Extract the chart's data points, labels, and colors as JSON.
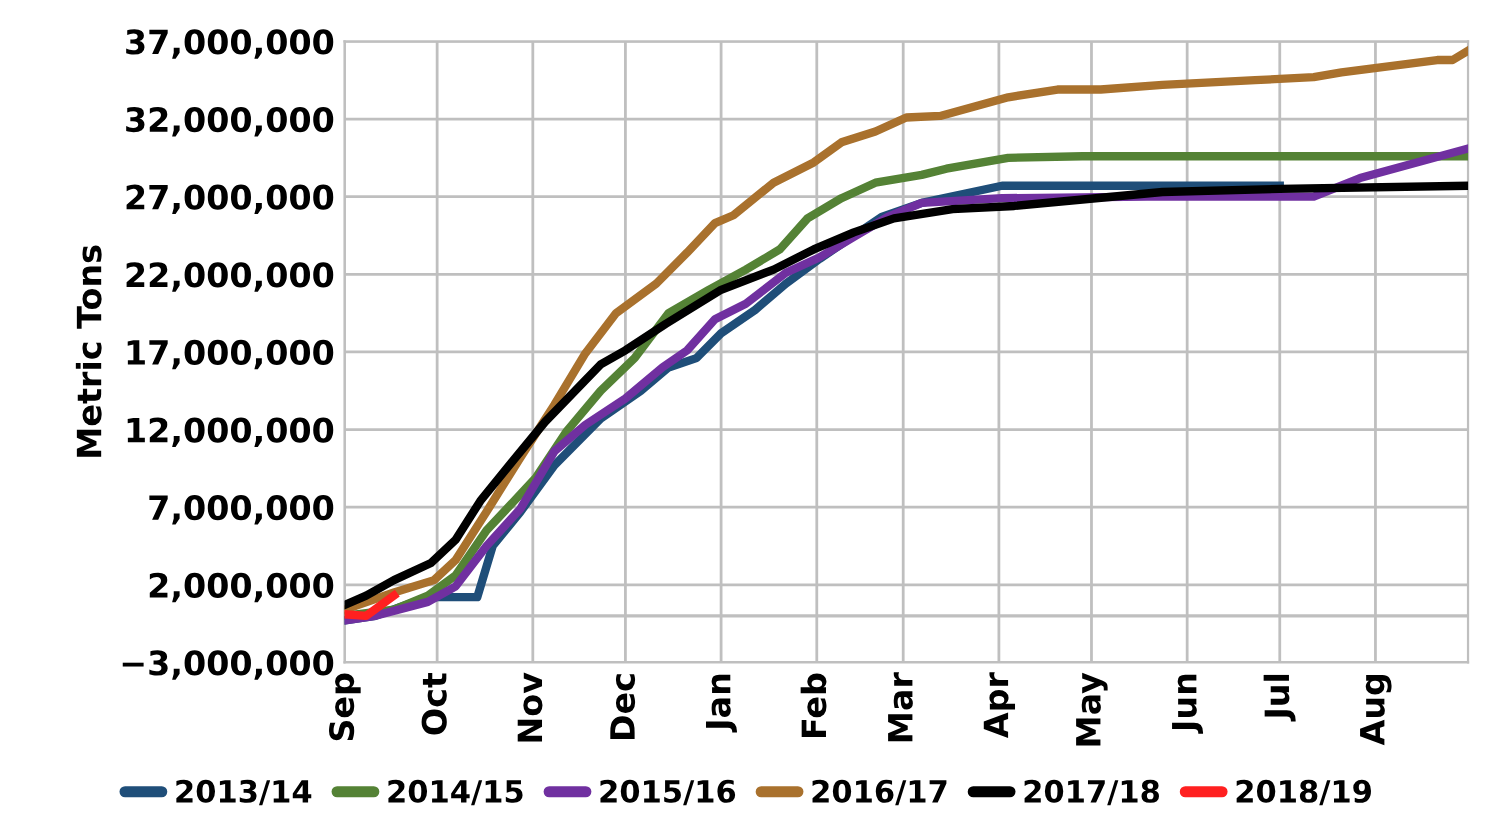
{
  "chart_data": {
    "type": "line",
    "ylabel": "Metric Tons",
    "xlim": [
      "2017-09-01",
      "2018-08-31"
    ],
    "xticks": [
      {
        "value": "2017-09-01",
        "label": "Sep"
      },
      {
        "value": "2017-10-01",
        "label": "Oct"
      },
      {
        "value": "2017-11-01",
        "label": "Nov"
      },
      {
        "value": "2017-12-01",
        "label": "Dec"
      },
      {
        "value": "2018-01-01",
        "label": "Jan"
      },
      {
        "value": "2018-02-01",
        "label": "Feb"
      },
      {
        "value": "2018-03-01",
        "label": "Mar"
      },
      {
        "value": "2018-04-01",
        "label": "Apr"
      },
      {
        "value": "2018-05-01",
        "label": "May"
      },
      {
        "value": "2018-06-01",
        "label": "Jun"
      },
      {
        "value": "2018-07-01",
        "label": "Jul"
      },
      {
        "value": "2018-08-01",
        "label": "Aug"
      }
    ],
    "ylim": [
      -3000000,
      37000000
    ],
    "yticks": [
      {
        "value": -3000000,
        "label": "−3,000,000"
      },
      {
        "value": 2000000,
        "label": "2,000,000"
      },
      {
        "value": 7000000,
        "label": "7,000,000"
      },
      {
        "value": 12000000,
        "label": "12,000,000"
      },
      {
        "value": 17000000,
        "label": "17,000,000"
      },
      {
        "value": 22000000,
        "label": "22,000,000"
      },
      {
        "value": 27000000,
        "label": "27,000,000"
      },
      {
        "value": 32000000,
        "label": "32,000,000"
      },
      {
        "value": 37000000,
        "label": "37,000,000"
      }
    ],
    "ref_lines": [
      {
        "axis": "y",
        "value": 0,
        "color": "#bfbfbf"
      }
    ],
    "grid": true,
    "legend": "bottom",
    "marker": "none",
    "line_style": "solid",
    "series": [
      {
        "name": "2013/14",
        "color": "#1f4e79",
        "x": [
          "2017-09-01",
          "2017-09-11",
          "2017-09-28",
          "2017-10-14",
          "2017-10-19",
          "2017-10-28",
          "2017-11-08",
          "2017-11-23",
          "2017-12-06",
          "2017-12-15",
          "2017-12-24",
          "2018-01-01",
          "2018-01-12",
          "2018-01-22",
          "2018-02-02",
          "2018-02-22",
          "2018-03-07",
          "2018-04-02",
          "2018-06-23",
          "2018-07-01"
        ],
        "values": [
          -300000,
          0,
          1200000,
          1200000,
          4500000,
          6700000,
          9700000,
          12700000,
          14500000,
          16000000,
          16600000,
          18200000,
          19700000,
          21400000,
          23000000,
          25700000,
          26600000,
          27700000,
          27700000,
          27700000
        ]
      },
      {
        "name": "2014/15",
        "color": "#548235",
        "x": [
          "2017-09-01",
          "2017-09-17",
          "2017-09-28",
          "2017-10-07",
          "2017-10-17",
          "2017-11-02",
          "2017-11-12",
          "2017-11-23",
          "2017-12-04",
          "2017-12-15",
          "2017-12-28",
          "2018-01-09",
          "2018-01-20",
          "2018-01-29",
          "2018-02-09",
          "2018-02-20",
          "2018-03-07",
          "2018-03-15",
          "2018-04-04",
          "2018-04-28",
          "2018-08-31"
        ],
        "values": [
          0,
          400000,
          1300000,
          2600000,
          5500000,
          8900000,
          11900000,
          14500000,
          16600000,
          19500000,
          21000000,
          22300000,
          23600000,
          25600000,
          26900000,
          27900000,
          28400000,
          28800000,
          29500000,
          29600000,
          29600000
        ]
      },
      {
        "name": "2015/16",
        "color": "#7030a0",
        "x": [
          "2017-09-01",
          "2017-09-11",
          "2017-09-28",
          "2017-10-07",
          "2017-10-17",
          "2017-10-28",
          "2017-11-08",
          "2017-11-18",
          "2017-12-01",
          "2017-12-13",
          "2017-12-21",
          "2017-12-30",
          "2018-01-09",
          "2018-01-22",
          "2018-02-02",
          "2018-02-13",
          "2018-02-24",
          "2018-03-07",
          "2018-04-02",
          "2018-05-19",
          "2018-07-12",
          "2018-07-27",
          "2018-08-31"
        ],
        "values": [
          -300000,
          0,
          900000,
          1900000,
          4500000,
          6900000,
          10600000,
          12300000,
          14000000,
          16000000,
          17100000,
          19100000,
          20100000,
          22100000,
          23100000,
          24400000,
          25700000,
          26600000,
          26900000,
          27000000,
          27000000,
          28200000,
          30100000
        ]
      },
      {
        "name": "2016/17",
        "color": "#a9712d",
        "x": [
          "2017-09-01",
          "2017-09-17",
          "2017-09-30",
          "2017-10-07",
          "2017-10-17",
          "2017-10-28",
          "2017-11-08",
          "2017-11-18",
          "2017-11-28",
          "2017-12-11",
          "2017-12-21",
          "2017-12-30",
          "2018-01-05",
          "2018-01-18",
          "2018-01-31",
          "2018-02-09",
          "2018-02-20",
          "2018-03-02",
          "2018-03-13",
          "2018-04-04",
          "2018-04-20",
          "2018-05-04",
          "2018-05-24",
          "2018-06-23",
          "2018-07-12",
          "2018-07-21",
          "2018-08-21",
          "2018-08-26",
          "2018-08-31"
        ],
        "values": [
          400000,
          1500000,
          2300000,
          3600000,
          6700000,
          10200000,
          13600000,
          16900000,
          19500000,
          21400000,
          23400000,
          25300000,
          25800000,
          27900000,
          29200000,
          30500000,
          31200000,
          32100000,
          32200000,
          33400000,
          33900000,
          33900000,
          34200000,
          34500000,
          34700000,
          35000000,
          35800000,
          35800000,
          36400000
        ]
      },
      {
        "name": "2017/18",
        "color": "#000000",
        "x": [
          "2017-09-01",
          "2017-09-08",
          "2017-09-17",
          "2017-09-29",
          "2017-10-07",
          "2017-10-15",
          "2017-10-26",
          "2017-11-05",
          "2017-11-23",
          "2017-12-01",
          "2017-12-14",
          "2018-01-01",
          "2018-01-18",
          "2018-01-31",
          "2018-02-13",
          "2018-02-26",
          "2018-03-17",
          "2018-04-06",
          "2018-05-24",
          "2018-07-01",
          "2018-08-31"
        ],
        "values": [
          700000,
          1300000,
          2300000,
          3400000,
          4900000,
          7400000,
          10100000,
          12500000,
          16200000,
          17100000,
          18800000,
          21000000,
          22300000,
          23600000,
          24700000,
          25600000,
          26200000,
          26400000,
          27300000,
          27500000,
          27700000
        ]
      },
      {
        "name": "2018/19",
        "color": "#ff2020",
        "x": [
          "2017-09-01",
          "2017-09-08",
          "2017-09-17"
        ],
        "values": [
          100000,
          0,
          1300000
        ]
      }
    ]
  }
}
